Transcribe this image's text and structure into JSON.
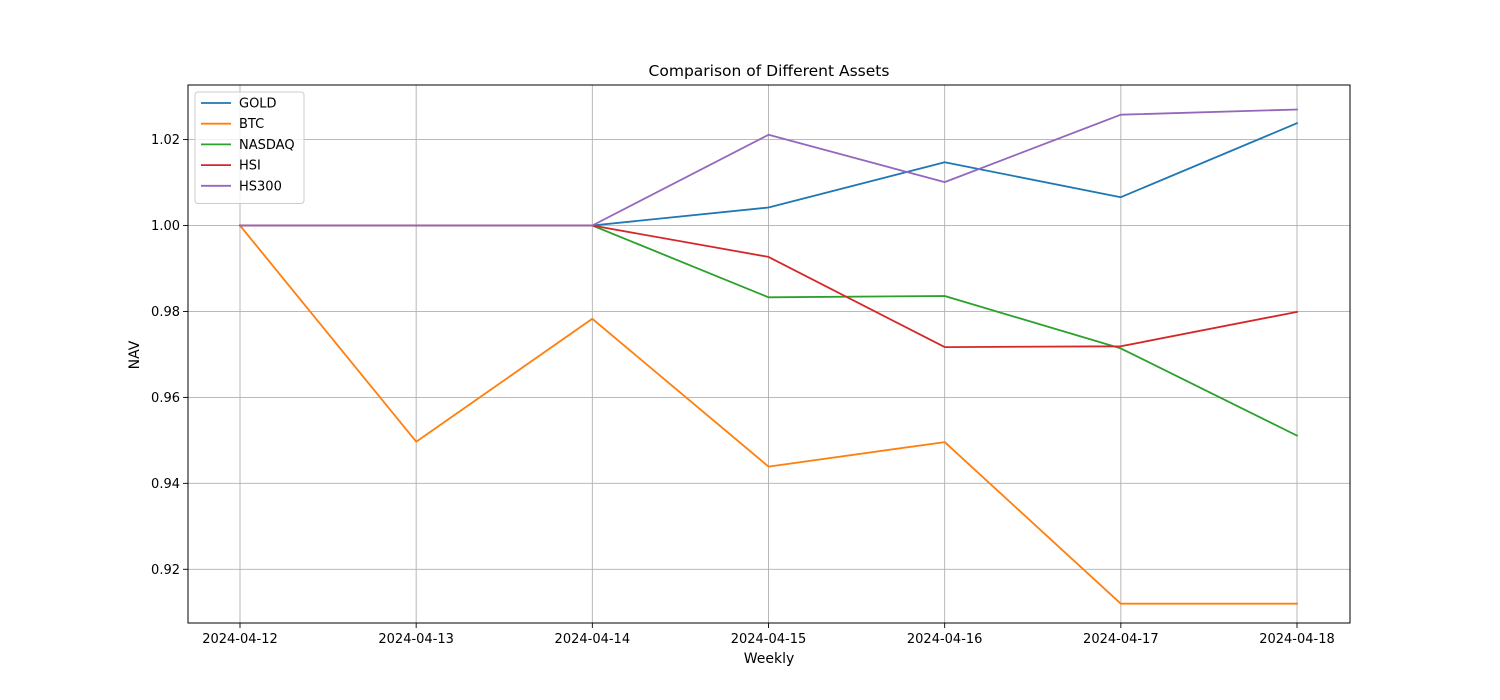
{
  "chart_data": {
    "type": "line",
    "title": "Comparison of Different Assets",
    "xlabel": "Weekly",
    "ylabel": "NAV",
    "x": [
      "2024-04-12",
      "2024-04-13",
      "2024-04-14",
      "2024-04-15",
      "2024-04-16",
      "2024-04-17",
      "2024-04-18"
    ],
    "ylim": [
      0.9075,
      1.0327
    ],
    "yticks": [
      0.92,
      0.94,
      0.96,
      0.98,
      1.0,
      1.02
    ],
    "ytick_labels": [
      "0.92",
      "0.94",
      "0.96",
      "0.98",
      "1.00",
      "1.02"
    ],
    "grid": true,
    "legend_position": "top-left",
    "series": [
      {
        "name": "GOLD",
        "color": "#1f77b4",
        "values": [
          1.0,
          1.0,
          1.0,
          1.0042,
          1.0147,
          1.0066,
          1.0238
        ]
      },
      {
        "name": "BTC",
        "color": "#ff7f0e",
        "values": [
          1.0,
          0.9497,
          0.9783,
          0.9439,
          0.9496,
          0.912,
          0.912
        ]
      },
      {
        "name": "NASDAQ",
        "color": "#2ca02c",
        "values": [
          1.0,
          1.0,
          1.0,
          0.9833,
          0.9836,
          0.9714,
          0.9511
        ]
      },
      {
        "name": "HSI",
        "color": "#d62728",
        "values": [
          1.0,
          1.0,
          1.0,
          0.9927,
          0.9717,
          0.9719,
          0.9799
        ]
      },
      {
        "name": "HS300",
        "color": "#9467bd",
        "values": [
          1.0,
          1.0,
          1.0,
          1.0211,
          1.0101,
          1.0258,
          1.027
        ]
      }
    ]
  }
}
